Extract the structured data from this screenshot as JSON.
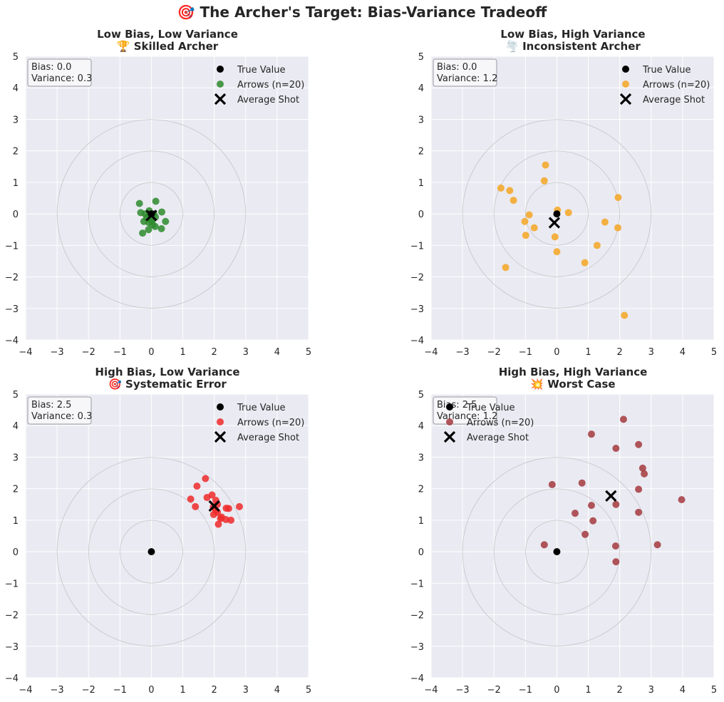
{
  "title": "🎯 The Archer's Target: Bias-Variance Tradeoff",
  "legend_labels": {
    "true_value": "True Value",
    "arrows": "Arrows (n=20)",
    "average": "Average Shot"
  },
  "chart_data": [
    {
      "type": "scatter",
      "title": "Low Bias, Low Variance",
      "subtitle": "🏆 Skilled Archer",
      "stats": {
        "bias": "Bias: 0.0",
        "variance": "Variance: 0.3"
      },
      "color": "#2e8b2e",
      "xlim": [
        -4,
        5
      ],
      "ylim": [
        -4,
        5
      ],
      "xticks": [
        -4,
        -3,
        -2,
        -1,
        0,
        1,
        2,
        3,
        4,
        5
      ],
      "yticks": [
        -4,
        -3,
        -2,
        -1,
        0,
        1,
        2,
        3,
        4,
        5
      ],
      "grid": true,
      "legend_position": "top-right",
      "target_rings": [
        1,
        2,
        3
      ],
      "true_value": [
        0,
        0
      ],
      "average_shot": [
        0.0,
        -0.05
      ],
      "points": [
        [
          -0.38,
          0.33
        ],
        [
          0.14,
          0.4
        ],
        [
          -0.34,
          0.04
        ],
        [
          -0.2,
          0.0
        ],
        [
          -0.07,
          0.1
        ],
        [
          0.08,
          0.0
        ],
        [
          0.33,
          0.06
        ],
        [
          0.45,
          -0.24
        ],
        [
          0.13,
          -0.1
        ],
        [
          0.03,
          -0.2
        ],
        [
          -0.08,
          -0.28
        ],
        [
          -0.24,
          -0.24
        ],
        [
          0.04,
          -0.35
        ],
        [
          0.12,
          -0.4
        ],
        [
          0.32,
          -0.47
        ],
        [
          -0.09,
          -0.5
        ],
        [
          -0.28,
          -0.61
        ],
        [
          -0.05,
          -0.02
        ],
        [
          0.0,
          -0.2
        ],
        [
          -0.15,
          -0.12
        ]
      ]
    },
    {
      "type": "scatter",
      "title": "Low Bias, High Variance",
      "subtitle": "🌪️ Inconsistent Archer",
      "stats": {
        "bias": "Bias: 0.0",
        "variance": "Variance: 1.2"
      },
      "color": "#f5a623",
      "xlim": [
        -4,
        5
      ],
      "ylim": [
        -4,
        5
      ],
      "xticks": [
        -4,
        -3,
        -2,
        -1,
        0,
        1,
        2,
        3,
        4,
        5
      ],
      "yticks": [
        -4,
        -3,
        -2,
        -1,
        0,
        1,
        2,
        3,
        4,
        5
      ],
      "grid": true,
      "legend_position": "top-right",
      "target_rings": [
        1,
        2,
        3
      ],
      "true_value": [
        0,
        0
      ],
      "average_shot": [
        -0.08,
        -0.28
      ],
      "points": [
        [
          -0.36,
          1.55
        ],
        [
          -0.4,
          1.05
        ],
        [
          -1.78,
          0.82
        ],
        [
          -1.5,
          0.74
        ],
        [
          -1.38,
          0.43
        ],
        [
          1.95,
          0.52
        ],
        [
          0.02,
          0.12
        ],
        [
          0.37,
          0.04
        ],
        [
          -0.88,
          -0.03
        ],
        [
          -1.02,
          -0.24
        ],
        [
          -0.72,
          -0.44
        ],
        [
          1.53,
          -0.26
        ],
        [
          1.94,
          -0.44
        ],
        [
          -0.99,
          -0.68
        ],
        [
          -0.06,
          -0.73
        ],
        [
          1.28,
          -1.0
        ],
        [
          0.0,
          -1.2
        ],
        [
          0.89,
          -1.55
        ],
        [
          -1.63,
          -1.7
        ],
        [
          2.15,
          -3.22
        ]
      ]
    },
    {
      "type": "scatter",
      "title": "High Bias, Low Variance",
      "subtitle": "🎯 Systematic Error",
      "stats": {
        "bias": "Bias: 2.5",
        "variance": "Variance: 0.3"
      },
      "color": "#ee2a2a",
      "xlim": [
        -4,
        5
      ],
      "ylim": [
        -4,
        5
      ],
      "xticks": [
        -4,
        -3,
        -2,
        -1,
        0,
        1,
        2,
        3,
        4,
        5
      ],
      "yticks": [
        -4,
        -3,
        -2,
        -1,
        0,
        1,
        2,
        3,
        4,
        5
      ],
      "grid": true,
      "legend_position": "top-right",
      "target_rings": [
        1,
        2,
        3
      ],
      "true_value": [
        0,
        0
      ],
      "average_shot": [
        2.0,
        1.45
      ],
      "points": [
        [
          1.72,
          2.32
        ],
        [
          1.45,
          2.08
        ],
        [
          1.93,
          1.8
        ],
        [
          1.77,
          1.72
        ],
        [
          1.25,
          1.67
        ],
        [
          2.05,
          1.63
        ],
        [
          1.4,
          1.43
        ],
        [
          2.1,
          1.5
        ],
        [
          2.8,
          1.43
        ],
        [
          2.38,
          1.38
        ],
        [
          2.46,
          1.37
        ],
        [
          2.05,
          1.3
        ],
        [
          1.98,
          1.18
        ],
        [
          2.23,
          1.1
        ],
        [
          2.2,
          1.05
        ],
        [
          2.37,
          1.02
        ],
        [
          2.53,
          1.0
        ],
        [
          2.13,
          0.87
        ],
        [
          1.97,
          1.42
        ],
        [
          2.1,
          1.25
        ]
      ]
    },
    {
      "type": "scatter",
      "title": "High Bias, High Variance",
      "subtitle": "💥 Worst Case",
      "stats": {
        "bias": "Bias: 2.5",
        "variance": "Variance: 1.2"
      },
      "color": "#a33a3e",
      "xlim": [
        -4,
        5
      ],
      "ylim": [
        -4,
        5
      ],
      "xticks": [
        -4,
        -3,
        -2,
        -1,
        0,
        1,
        2,
        3,
        4,
        5
      ],
      "yticks": [
        -4,
        -3,
        -2,
        -1,
        0,
        1,
        2,
        3,
        4,
        5
      ],
      "grid": true,
      "legend_position": "top-left",
      "target_rings": [
        1,
        2,
        3
      ],
      "true_value": [
        0,
        0
      ],
      "average_shot": [
        1.72,
        1.77
      ],
      "points": [
        [
          2.12,
          4.2
        ],
        [
          1.1,
          3.73
        ],
        [
          1.88,
          3.28
        ],
        [
          2.6,
          3.4
        ],
        [
          2.73,
          2.65
        ],
        [
          2.78,
          2.47
        ],
        [
          -0.15,
          2.13
        ],
        [
          0.8,
          2.18
        ],
        [
          2.6,
          1.98
        ],
        [
          3.97,
          1.65
        ],
        [
          1.1,
          1.47
        ],
        [
          1.88,
          1.5
        ],
        [
          0.58,
          1.22
        ],
        [
          2.6,
          1.25
        ],
        [
          1.15,
          0.98
        ],
        [
          0.9,
          0.55
        ],
        [
          -0.4,
          0.22
        ],
        [
          1.87,
          0.18
        ],
        [
          3.2,
          0.22
        ],
        [
          1.88,
          -0.32
        ]
      ]
    }
  ]
}
